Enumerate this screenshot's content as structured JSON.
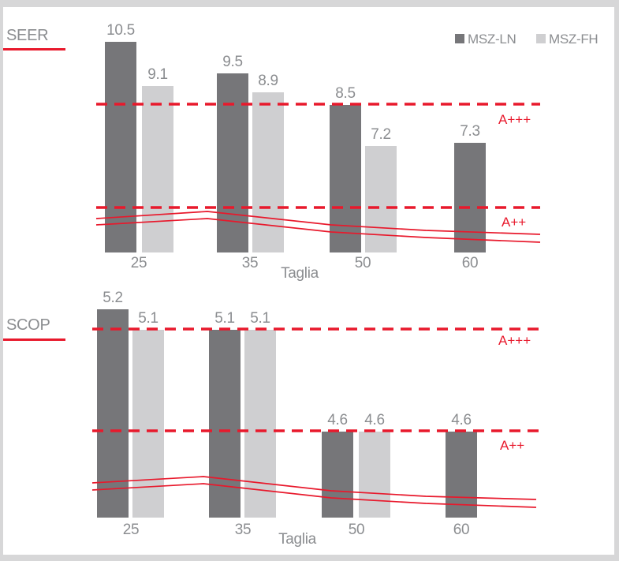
{
  "colors": {
    "msz_ln_bar": "#767679",
    "msz_fh_bar": "#cfcfd1",
    "red_accent": "#e8192c",
    "gray_text": "#8b8d90",
    "frame_gray": "#d7d7d8"
  },
  "legend": {
    "items": [
      {
        "label": "MSZ-LN",
        "series": "ln"
      },
      {
        "label": "MSZ-FH",
        "series": "fh"
      }
    ]
  },
  "chart_data": [
    {
      "type": "bar",
      "title": "SEER",
      "xlabel": "Taglia",
      "categories": [
        "25",
        "35",
        "50",
        "60"
      ],
      "series": [
        {
          "name": "MSZ-LN",
          "values": [
            10.5,
            9.5,
            8.5,
            7.3
          ]
        },
        {
          "name": "MSZ-FH",
          "values": [
            9.1,
            8.9,
            7.2,
            null
          ]
        }
      ],
      "value_labels": [
        "10.5",
        "9.1",
        "9.5",
        "8.9",
        "8.5",
        "7.2",
        "7.3"
      ],
      "thresholds": [
        {
          "label": "A+++",
          "style": "dashed-red"
        },
        {
          "label": "A++",
          "style": "dashed-red"
        }
      ],
      "annotation_lines": "two solid red trend lines rising to size 35 then declining",
      "legend_position": "top-right",
      "grid": false
    },
    {
      "type": "bar",
      "title": "SCOP",
      "xlabel": "Taglia",
      "categories": [
        "25",
        "35",
        "50",
        "60"
      ],
      "series": [
        {
          "name": "MSZ-LN",
          "values": [
            5.2,
            5.1,
            4.6,
            4.6
          ]
        },
        {
          "name": "MSZ-FH",
          "values": [
            5.1,
            5.1,
            4.6,
            null
          ]
        }
      ],
      "value_labels": [
        "5.2",
        "5.1",
        "5.1",
        "5.1",
        "4.6",
        "4.6",
        "4.6"
      ],
      "thresholds": [
        {
          "label": "A+++",
          "style": "dashed-red"
        },
        {
          "label": "A++",
          "style": "dashed-red"
        }
      ],
      "annotation_lines": "two solid red trend lines rising to size 35 then declining",
      "legend_position": "none",
      "grid": false
    }
  ]
}
